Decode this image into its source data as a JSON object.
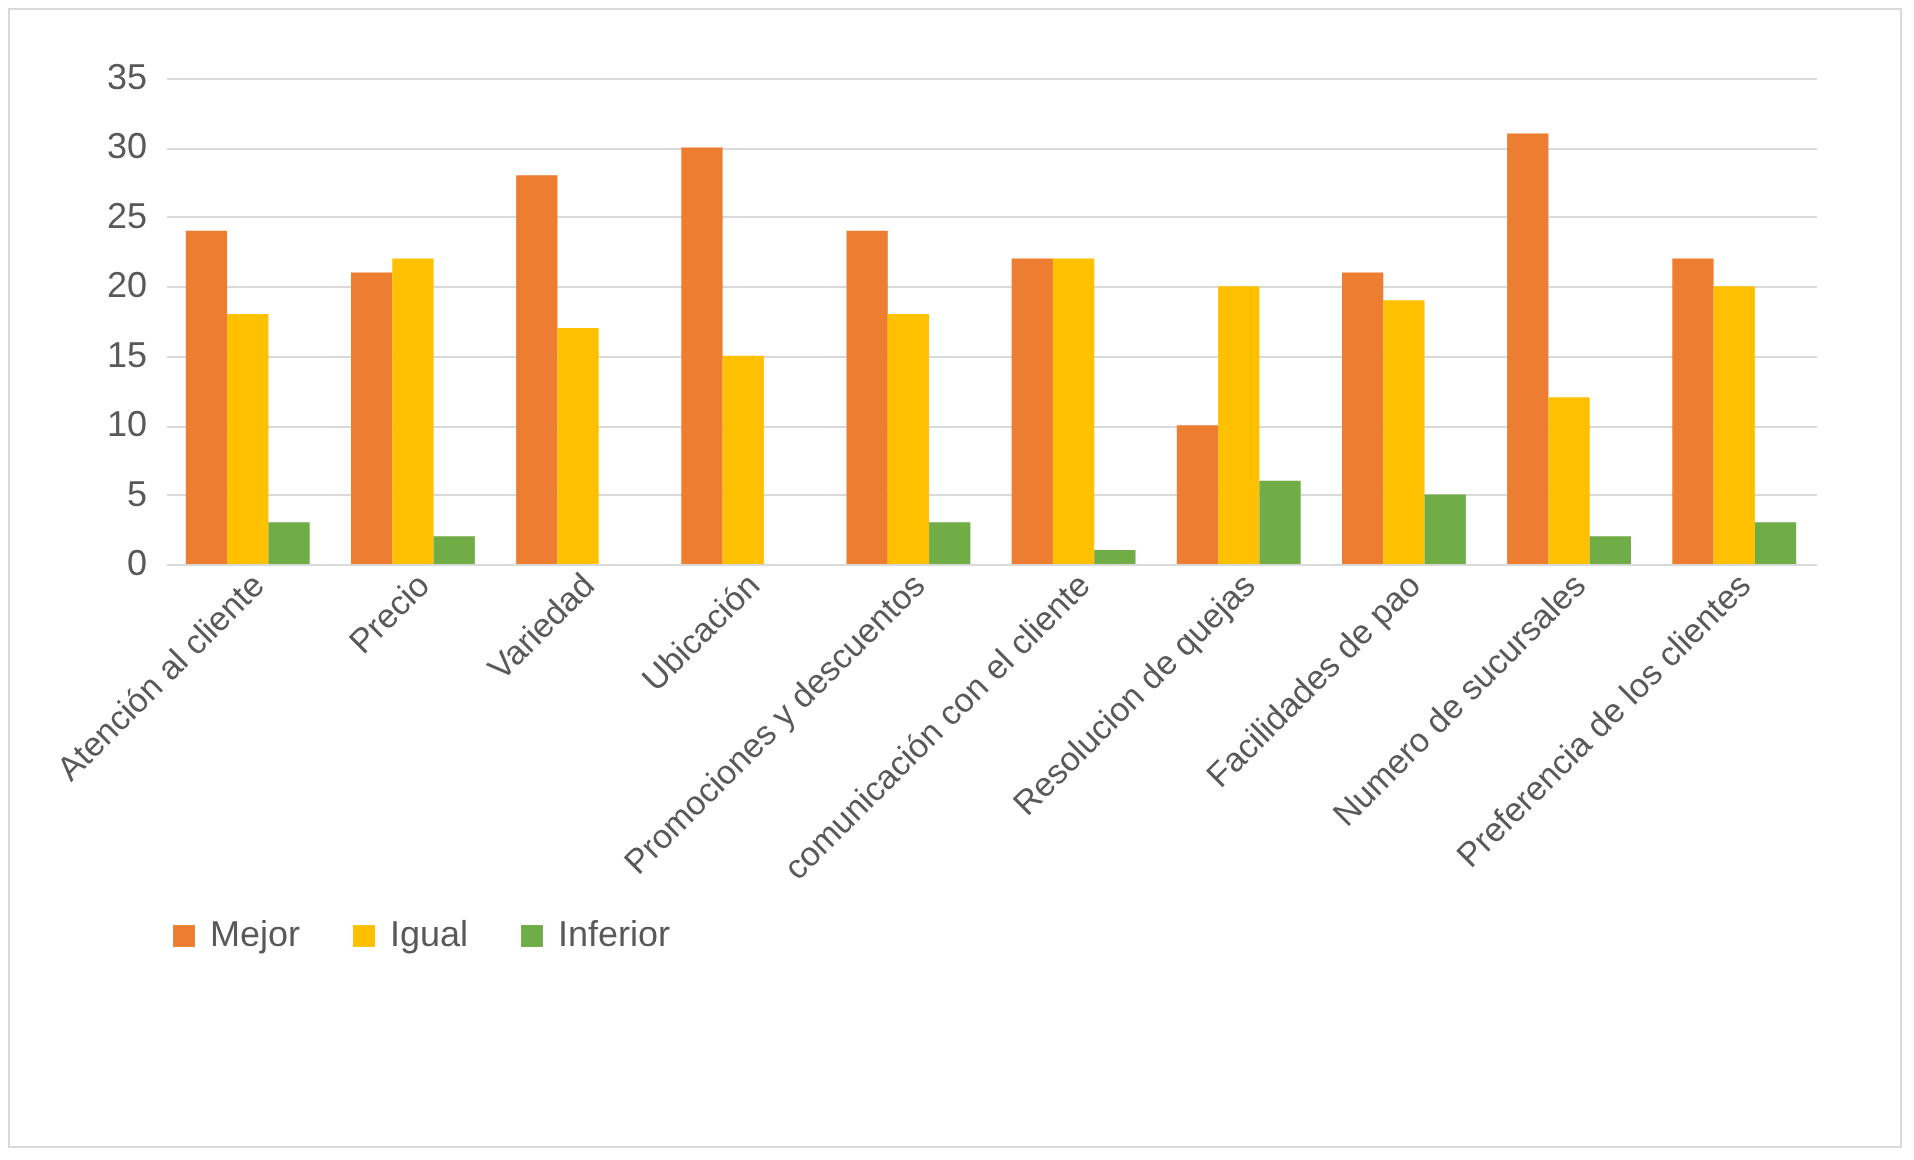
{
  "chart_data": {
    "type": "bar",
    "categories": [
      "Atención al cliente",
      "Precio",
      "Variedad",
      "Ubicación",
      "Promociones y descuentos",
      "comunicación con el cliente",
      "Resolucion de quejas",
      "Facilidades de pao",
      "Numero de sucursales",
      "Preferencia de los clientes"
    ],
    "series": [
      {
        "name": "Mejor",
        "color": "#ed7d31",
        "values": [
          24,
          21,
          28,
          30,
          24,
          22,
          10,
          21,
          31,
          22
        ]
      },
      {
        "name": "Igual",
        "color": "#ffc000",
        "values": [
          18,
          22,
          17,
          15,
          18,
          22,
          20,
          19,
          12,
          20
        ]
      },
      {
        "name": "Inferior",
        "color": "#70ad47",
        "values": [
          3,
          2,
          0,
          0,
          3,
          1,
          6,
          5,
          2,
          3
        ]
      }
    ],
    "ylim": [
      0,
      35
    ],
    "yticks": [
      0,
      5,
      10,
      15,
      20,
      25,
      30,
      35
    ],
    "grid": "y",
    "legend": "bottom"
  }
}
